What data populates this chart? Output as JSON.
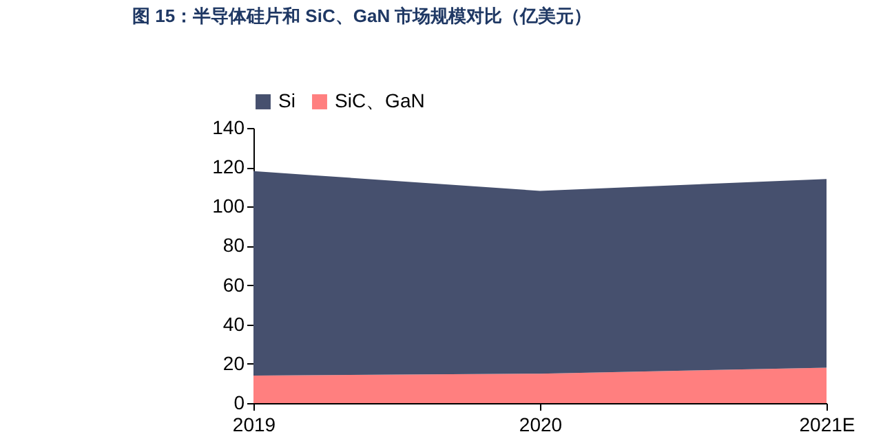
{
  "chart_data": {
    "type": "area",
    "title": "图 15：半导体硅片和 SiC、GaN 市场规模对比（亿美元）",
    "categories": [
      "2019",
      "2020",
      "2021E"
    ],
    "stacked": true,
    "series": [
      {
        "name": "SiC、GaN",
        "color": "#ff7f7f",
        "values": [
          14,
          15,
          18
        ]
      },
      {
        "name": "Si",
        "color": "#46506e",
        "values": [
          104,
          93,
          96
        ]
      }
    ],
    "ylim": [
      0,
      140
    ],
    "yticks": [
      0,
      20,
      40,
      60,
      80,
      100,
      120,
      140
    ],
    "grid": false,
    "legend": "top"
  }
}
